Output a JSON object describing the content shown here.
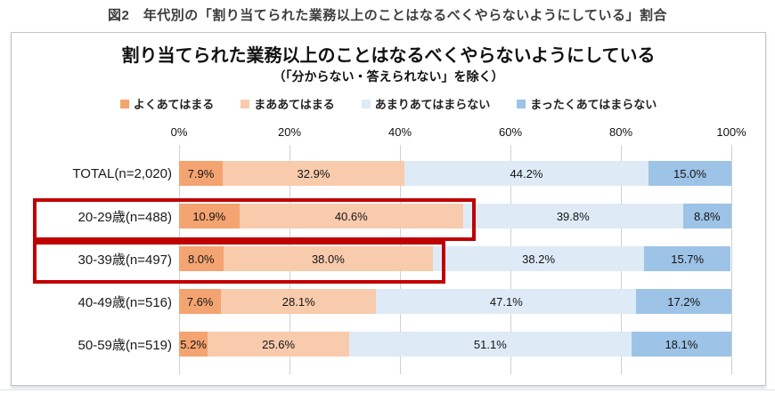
{
  "page": {
    "title": "図2　年代別の「割り当てられた業務以上のことはなるべくやらないようにしている」割合"
  },
  "chart_data": {
    "type": "bar",
    "orientation": "horizontal-stacked",
    "title": "割り当てられた業務以上のことはなるべくやらないようにしている",
    "subtitle": "（「分からない・答えられない」を除く）",
    "categories": [
      "TOTAL(n=2,020)",
      "20-29歳(n=488)",
      "30-39歳(n=497)",
      "40-49歳(n=516)",
      "50-59歳(n=519)"
    ],
    "series": [
      {
        "name": "よくあてはまる",
        "color": "#F4A470",
        "values": [
          7.9,
          10.9,
          8.0,
          7.6,
          5.2
        ],
        "labels": [
          "7.9%",
          "10.9%",
          "8.0%",
          "7.6%",
          "5.2%"
        ]
      },
      {
        "name": "まああてはまる",
        "color": "#F8CBAD",
        "values": [
          32.9,
          40.6,
          38.0,
          28.1,
          25.6
        ],
        "labels": [
          "32.9%",
          "40.6%",
          "38.0%",
          "28.1%",
          "25.6%"
        ]
      },
      {
        "name": "あまりあてはまらない",
        "color": "#DEEBF7",
        "values": [
          44.2,
          39.8,
          38.2,
          47.1,
          51.1
        ],
        "labels": [
          "44.2%",
          "39.8%",
          "38.2%",
          "47.1%",
          "51.1%"
        ]
      },
      {
        "name": "まったくあてはまらない",
        "color": "#9DC3E6",
        "values": [
          15.0,
          8.8,
          15.7,
          17.2,
          18.1
        ],
        "labels": [
          "15.0%",
          "8.8%",
          "15.7%",
          "17.2%",
          "18.1%"
        ]
      }
    ],
    "x_ticks": [
      "0%",
      "20%",
      "40%",
      "60%",
      "80%",
      "100%"
    ],
    "xlim": [
      0,
      100
    ],
    "grid": true,
    "legend_position": "top",
    "highlighted_row_indices": [
      1,
      2
    ],
    "highlighted_rows": [
      "20-29歳(n=488)",
      "30-39歳(n=497)"
    ],
    "highlight_color": "#C00000"
  }
}
